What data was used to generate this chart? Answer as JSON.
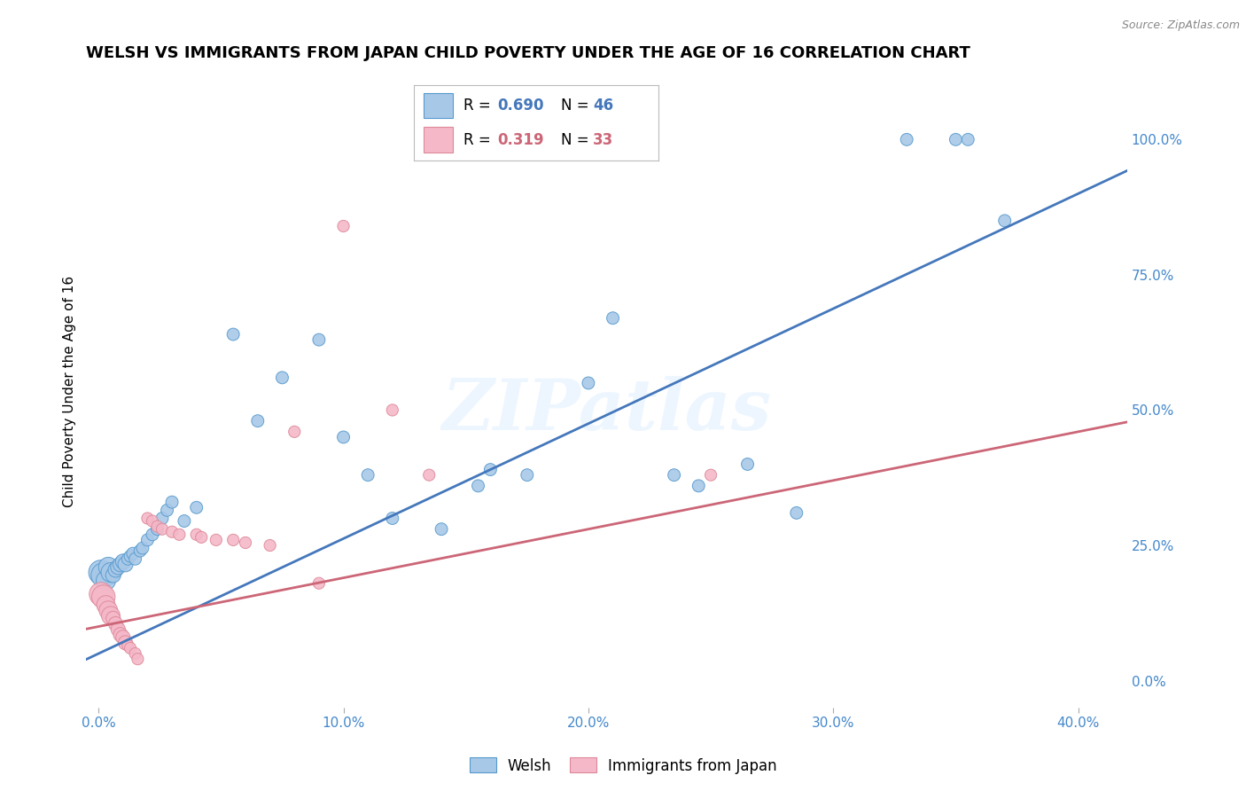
{
  "title": "WELSH VS IMMIGRANTS FROM JAPAN CHILD POVERTY UNDER THE AGE OF 16 CORRELATION CHART",
  "source": "Source: ZipAtlas.com",
  "xlabel_ticks": [
    "0.0%",
    "10.0%",
    "20.0%",
    "30.0%",
    "40.0%"
  ],
  "xlabel_tick_vals": [
    0.0,
    0.1,
    0.2,
    0.3,
    0.4
  ],
  "ylabel": "Child Poverty Under the Age of 16",
  "ylabel_right_ticks": [
    "0.0%",
    "25.0%",
    "50.0%",
    "75.0%",
    "100.0%"
  ],
  "ylabel_right_tick_vals": [
    0.0,
    0.25,
    0.5,
    0.75,
    1.0
  ],
  "xlim": [
    -0.005,
    0.42
  ],
  "ylim": [
    -0.05,
    1.12
  ],
  "watermark": "ZIPatlas",
  "legend_blue_r": "0.690",
  "legend_blue_n": "46",
  "legend_pink_r": "0.319",
  "legend_pink_n": "33",
  "legend_label_blue": "Welsh",
  "legend_label_pink": "Immigrants from Japan",
  "blue_color": "#a8c8e8",
  "blue_edge_color": "#5599cc",
  "blue_line_color": "#4477bb",
  "pink_color": "#f4b8c8",
  "pink_edge_color": "#dd8899",
  "pink_line_color": "#cc6677",
  "tick_color": "#4488cc",
  "blue_scatter": [
    [
      0.001,
      0.2
    ],
    [
      0.002,
      0.195
    ],
    [
      0.003,
      0.185
    ],
    [
      0.004,
      0.21
    ],
    [
      0.005,
      0.2
    ],
    [
      0.006,
      0.195
    ],
    [
      0.007,
      0.205
    ],
    [
      0.008,
      0.21
    ],
    [
      0.009,
      0.215
    ],
    [
      0.01,
      0.22
    ],
    [
      0.011,
      0.215
    ],
    [
      0.012,
      0.225
    ],
    [
      0.013,
      0.23
    ],
    [
      0.014,
      0.235
    ],
    [
      0.015,
      0.225
    ],
    [
      0.017,
      0.24
    ],
    [
      0.018,
      0.245
    ],
    [
      0.02,
      0.26
    ],
    [
      0.022,
      0.27
    ],
    [
      0.024,
      0.28
    ],
    [
      0.026,
      0.3
    ],
    [
      0.028,
      0.315
    ],
    [
      0.03,
      0.33
    ],
    [
      0.035,
      0.295
    ],
    [
      0.04,
      0.32
    ],
    [
      0.055,
      0.64
    ],
    [
      0.065,
      0.48
    ],
    [
      0.075,
      0.56
    ],
    [
      0.09,
      0.63
    ],
    [
      0.1,
      0.45
    ],
    [
      0.11,
      0.38
    ],
    [
      0.12,
      0.3
    ],
    [
      0.14,
      0.28
    ],
    [
      0.155,
      0.36
    ],
    [
      0.16,
      0.39
    ],
    [
      0.175,
      0.38
    ],
    [
      0.2,
      0.55
    ],
    [
      0.21,
      0.67
    ],
    [
      0.235,
      0.38
    ],
    [
      0.245,
      0.36
    ],
    [
      0.265,
      0.4
    ],
    [
      0.285,
      0.31
    ],
    [
      0.33,
      1.0
    ],
    [
      0.35,
      1.0
    ],
    [
      0.355,
      1.0
    ],
    [
      0.37,
      0.85
    ]
  ],
  "pink_scatter": [
    [
      0.001,
      0.16
    ],
    [
      0.002,
      0.155
    ],
    [
      0.003,
      0.14
    ],
    [
      0.004,
      0.13
    ],
    [
      0.005,
      0.12
    ],
    [
      0.006,
      0.115
    ],
    [
      0.007,
      0.105
    ],
    [
      0.008,
      0.095
    ],
    [
      0.009,
      0.085
    ],
    [
      0.01,
      0.08
    ],
    [
      0.011,
      0.07
    ],
    [
      0.012,
      0.065
    ],
    [
      0.013,
      0.06
    ],
    [
      0.015,
      0.05
    ],
    [
      0.016,
      0.04
    ],
    [
      0.02,
      0.3
    ],
    [
      0.022,
      0.295
    ],
    [
      0.024,
      0.285
    ],
    [
      0.026,
      0.28
    ],
    [
      0.03,
      0.275
    ],
    [
      0.033,
      0.27
    ],
    [
      0.04,
      0.27
    ],
    [
      0.042,
      0.265
    ],
    [
      0.048,
      0.26
    ],
    [
      0.055,
      0.26
    ],
    [
      0.06,
      0.255
    ],
    [
      0.07,
      0.25
    ],
    [
      0.08,
      0.46
    ],
    [
      0.1,
      0.84
    ],
    [
      0.12,
      0.5
    ],
    [
      0.09,
      0.18
    ],
    [
      0.25,
      0.38
    ],
    [
      0.135,
      0.38
    ]
  ],
  "grid_color": "#cccccc",
  "background_color": "#ffffff",
  "title_fontsize": 13,
  "axis_fontsize": 11,
  "tick_fontsize": 11
}
